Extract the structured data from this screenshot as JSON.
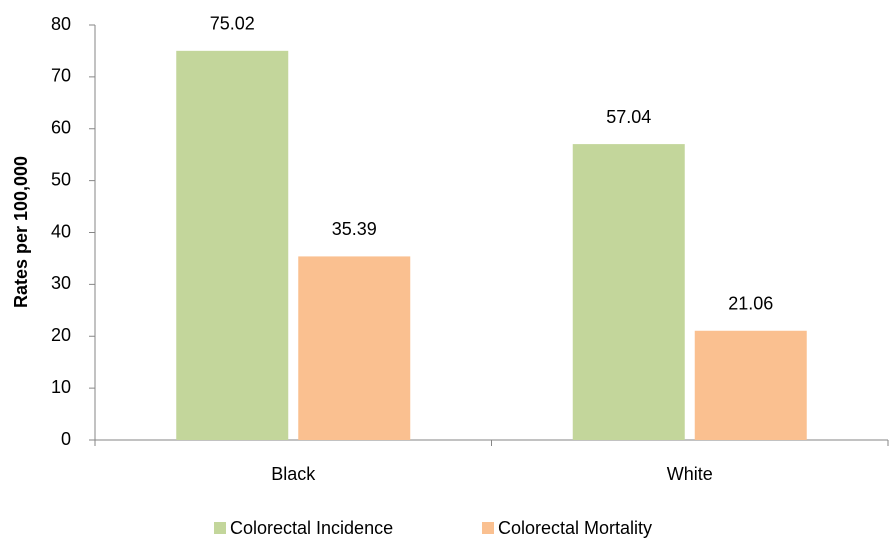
{
  "chart_data": {
    "type": "bar",
    "y_label": "Rates per 100,000",
    "categories": [
      "Black",
      "White"
    ],
    "series": [
      {
        "name": "Colorectal Incidence",
        "color": "#c3d69b",
        "values": [
          75.02,
          57.04
        ]
      },
      {
        "name": "Colorectal Mortality",
        "color": "#fac090",
        "values": [
          35.39,
          21.06
        ]
      }
    ],
    "ylim": [
      0,
      80
    ],
    "yticks": [
      0,
      10,
      20,
      30,
      40,
      50,
      60,
      70,
      80
    ],
    "legend": "bottom",
    "data_labels": true
  }
}
